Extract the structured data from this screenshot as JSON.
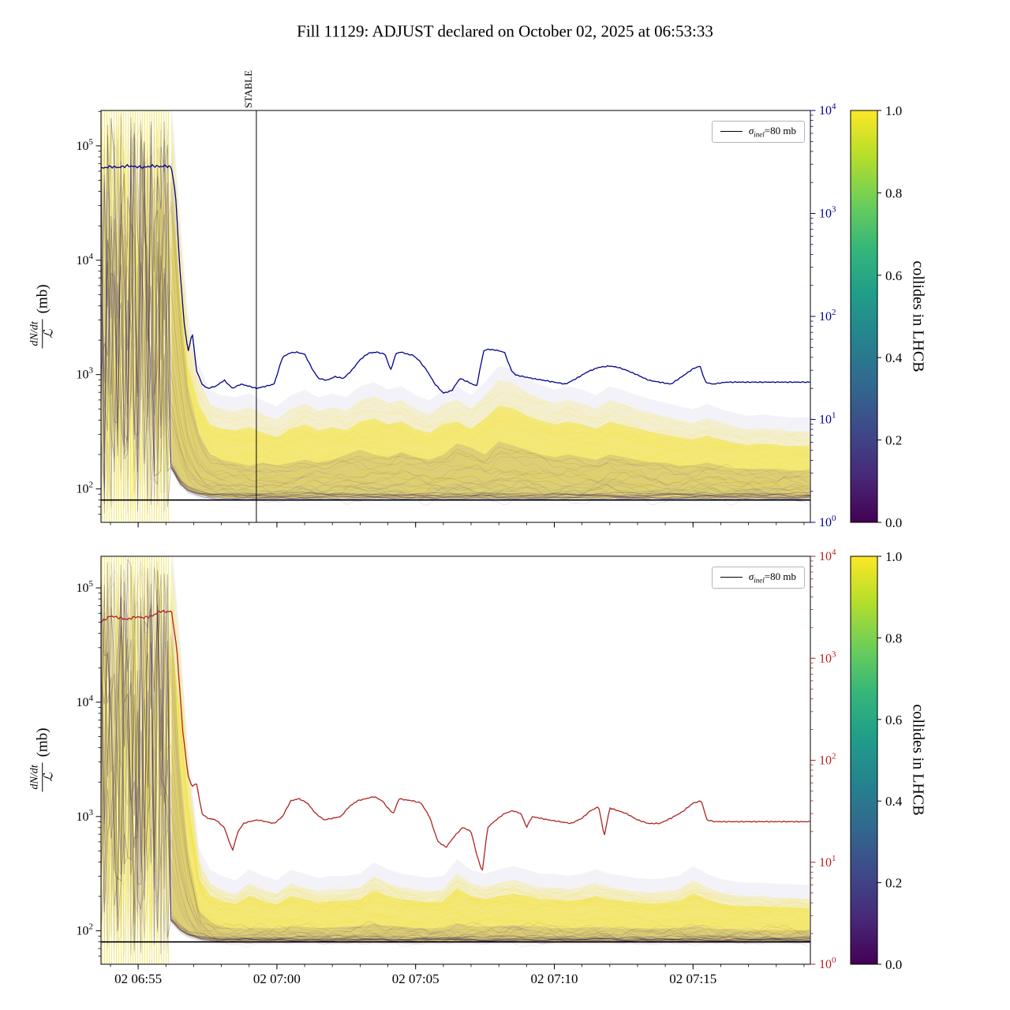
{
  "chart_data": {
    "type": "line",
    "title": "Fill 11129: ADJUST declared on October 02, 2025 at 06:53:33",
    "ylabel": {
      "numerator": "dN/dt",
      "denominator": "ℒ",
      "unit": "(mb)"
    },
    "xlabel": "",
    "x_domain_minutes": [
      53.66,
      79.23
    ],
    "x_ticks": {
      "t": [
        55,
        60,
        65,
        70,
        75
      ],
      "labels": [
        "02 06:55",
        "02 07:00",
        "02 07:05",
        "02 07:10",
        "02 07:15"
      ]
    },
    "annotations": {
      "stable": "STABLE",
      "stable_t": 59.26
    },
    "legend": {
      "sigma": "σ",
      "sub": "inel",
      "rest": "=80 mb",
      "label": "σ_inel=80 mb"
    },
    "colorbar": {
      "label": "collides in LHCB",
      "tick_labels": [
        "1.0",
        "0.8",
        "0.6",
        "0.4",
        "0.2",
        "0.0"
      ],
      "tick_values": [
        1.0,
        0.8,
        0.6,
        0.4,
        0.2,
        0.0
      ],
      "range": [
        0,
        1
      ],
      "colormap": "viridis",
      "colors_top_to_bottom": [
        "#fde725",
        "#b5de2b",
        "#6ece58",
        "#35b779",
        "#1f9e89",
        "#26828e",
        "#31688e",
        "#3e4989",
        "#482878",
        "#440154"
      ]
    },
    "panels": [
      {
        "name": "top",
        "line_color": "#00008b",
        "sigma_mb": 80,
        "prefill_end_t": 56.15,
        "y_left": {
          "scale": "log",
          "lim": [
            51,
            204000
          ],
          "base": "10",
          "tick_exponents": [
            2,
            3,
            4,
            5
          ]
        },
        "y_right": {
          "scale": "log",
          "lim": [
            1,
            10000
          ],
          "base": "10",
          "tick_exponents": [
            0,
            1,
            2,
            3,
            4
          ]
        },
        "line": {
          "t": [
            53.7,
            54.0,
            54.3,
            54.6,
            54.9,
            55.2,
            55.5,
            55.8,
            56.0,
            56.2,
            56.35,
            56.5,
            56.65,
            56.8,
            56.95,
            57.1,
            57.3,
            57.5,
            57.8,
            58.1,
            58.4,
            58.7,
            59.0,
            59.26,
            59.6,
            59.9,
            60.2,
            60.45,
            60.7,
            61.0,
            61.3,
            61.5,
            61.8,
            62.1,
            62.4,
            62.7,
            63.0,
            63.3,
            63.6,
            63.9,
            64.1,
            64.3,
            64.5,
            64.7,
            64.9,
            65.1,
            65.4,
            65.7,
            66.0,
            66.3,
            66.6,
            66.9,
            67.2,
            67.45,
            67.6,
            67.9,
            68.2,
            68.45,
            68.6,
            68.9,
            69.2,
            69.6,
            70.0,
            70.4,
            70.8,
            71.2,
            71.6,
            72.0,
            72.3,
            72.6,
            73.0,
            73.4,
            73.8,
            74.2,
            74.6,
            75.0,
            75.25,
            75.45,
            75.7,
            76.2,
            76.8,
            77.4,
            78.0,
            78.6,
            79.2
          ],
          "v": [
            2750,
            2850,
            2800,
            2900,
            2850,
            2800,
            2900,
            2850,
            2900,
            2800,
            1500,
            300,
            90,
            45,
            70,
            30,
            22,
            20,
            21,
            24,
            20,
            22,
            21,
            20,
            21,
            22,
            40,
            44,
            45,
            43,
            30,
            25,
            24,
            26,
            25,
            30,
            38,
            44,
            45,
            43,
            30,
            44,
            45,
            43,
            42,
            38,
            30,
            22,
            18,
            19,
            25,
            23,
            21,
            46,
            48,
            47,
            45,
            30,
            27,
            26,
            25,
            24,
            23,
            22,
            25,
            29,
            32,
            33,
            32,
            30,
            27,
            24,
            23,
            22,
            26,
            31,
            33,
            23,
            22,
            23,
            23,
            23,
            23,
            23,
            23
          ]
        },
        "band": {
          "t": [
            56.2,
            56.5,
            56.8,
            57.2,
            57.6,
            58.0,
            58.5,
            59.0,
            59.5,
            60.0,
            60.5,
            61.0,
            61.5,
            62.0,
            62.5,
            63.0,
            63.5,
            64.0,
            64.5,
            65.0,
            65.5,
            66.0,
            66.5,
            67.0,
            67.5,
            68.0,
            68.5,
            69.0,
            69.5,
            70.0,
            70.5,
            71.0,
            71.5,
            72.0,
            72.5,
            73.0,
            73.5,
            74.0,
            74.5,
            75.0,
            75.5,
            76.0,
            76.5,
            77.0,
            77.5,
            78.0,
            78.5,
            79.2
          ],
          "hi": [
            200000,
            20000,
            2500,
            900,
            550,
            500,
            480,
            520,
            450,
            400,
            500,
            560,
            480,
            520,
            480,
            600,
            650,
            560,
            600,
            500,
            450,
            560,
            600,
            500,
            650,
            900,
            850,
            700,
            620,
            560,
            600,
            560,
            500,
            600,
            550,
            500,
            460,
            430,
            400,
            380,
            420,
            380,
            350,
            330,
            340,
            330,
            320,
            320
          ],
          "lo": [
            150,
            110,
            95,
            88,
            84,
            83,
            82,
            82,
            82,
            82,
            82,
            82,
            82,
            82,
            82,
            82,
            82,
            82,
            82,
            82,
            82,
            82,
            82,
            82,
            82,
            82,
            82,
            82,
            82,
            82,
            82,
            82,
            82,
            82,
            82,
            82,
            82,
            82,
            82,
            82,
            82,
            82,
            82,
            82,
            82,
            82,
            82,
            82
          ],
          "purple_hi": [
            100000,
            5000,
            800,
            300,
            200,
            180,
            170,
            160,
            170,
            160,
            170,
            180,
            170,
            180,
            200,
            220,
            200,
            190,
            210,
            190,
            180,
            200,
            250,
            230,
            200,
            260,
            240,
            220,
            200,
            190,
            200,
            190,
            180,
            200,
            190,
            180,
            170,
            170,
            160,
            160,
            170,
            160,
            150,
            150,
            150,
            150,
            145,
            145
          ]
        }
      },
      {
        "name": "bottom",
        "line_color": "#b22222",
        "sigma_mb": 80,
        "prefill_end_t": 56.15,
        "y_left": {
          "scale": "log",
          "lim": [
            51,
            189000
          ],
          "base": "10",
          "tick_exponents": [
            2,
            3,
            4,
            5
          ]
        },
        "y_right": {
          "scale": "log",
          "lim": [
            1,
            10000
          ],
          "base": "10",
          "tick_exponents": [
            0,
            1,
            2,
            3,
            4
          ]
        },
        "line": {
          "t": [
            53.7,
            54.0,
            54.3,
            54.6,
            54.9,
            55.2,
            55.5,
            55.8,
            56.0,
            56.2,
            56.4,
            56.6,
            56.8,
            56.95,
            57.1,
            57.3,
            57.5,
            57.8,
            58.1,
            58.4,
            58.6,
            58.8,
            59.0,
            59.3,
            59.6,
            59.9,
            60.2,
            60.5,
            60.8,
            61.1,
            61.4,
            61.7,
            62.0,
            62.3,
            62.6,
            62.9,
            63.2,
            63.5,
            63.8,
            64.0,
            64.2,
            64.4,
            64.6,
            64.9,
            65.2,
            65.5,
            65.8,
            66.1,
            66.4,
            66.7,
            67.0,
            67.2,
            67.4,
            67.6,
            67.9,
            68.2,
            68.5,
            68.8,
            69.0,
            69.2,
            69.5,
            69.8,
            70.2,
            70.6,
            71.0,
            71.3,
            71.6,
            71.8,
            72.0,
            72.3,
            72.6,
            73.0,
            73.4,
            73.8,
            74.2,
            74.6,
            75.0,
            75.3,
            75.5,
            75.8,
            76.2,
            76.8,
            77.4,
            78.0,
            78.6,
            79.2
          ],
          "v": [
            2300,
            2600,
            2500,
            2400,
            2550,
            2500,
            2600,
            2900,
            2850,
            2900,
            1200,
            200,
            70,
            55,
            60,
            30,
            27,
            26,
            22,
            13,
            20,
            24,
            25,
            26,
            25,
            24,
            28,
            40,
            42,
            38,
            30,
            26,
            27,
            28,
            35,
            40,
            42,
            44,
            40,
            34,
            30,
            42,
            41,
            40,
            38,
            28,
            16,
            14,
            18,
            22,
            20,
            12,
            8,
            22,
            26,
            30,
            32,
            30,
            22,
            28,
            27,
            26,
            25,
            24,
            27,
            32,
            35,
            18,
            34,
            32,
            30,
            26,
            24,
            24,
            27,
            31,
            38,
            40,
            26,
            25,
            25,
            25,
            25,
            25,
            25,
            25
          ]
        },
        "band": {
          "t": [
            56.2,
            56.5,
            56.8,
            57.2,
            57.6,
            58.0,
            58.5,
            59.0,
            59.5,
            60.0,
            60.5,
            61.0,
            61.5,
            62.0,
            62.5,
            63.0,
            63.5,
            64.0,
            64.5,
            65.0,
            65.5,
            66.0,
            66.5,
            67.0,
            67.5,
            68.0,
            68.5,
            69.0,
            69.5,
            70.0,
            70.5,
            71.0,
            71.5,
            72.0,
            72.5,
            73.0,
            73.5,
            74.0,
            74.5,
            75.0,
            75.5,
            76.0,
            76.5,
            77.0,
            77.5,
            78.0,
            78.5,
            79.2
          ],
          "hi": [
            200000,
            30000,
            3000,
            400,
            260,
            230,
            210,
            260,
            230,
            210,
            260,
            240,
            220,
            230,
            230,
            240,
            300,
            260,
            240,
            230,
            220,
            230,
            320,
            260,
            240,
            260,
            280,
            260,
            240,
            240,
            230,
            240,
            260,
            240,
            230,
            220,
            215,
            220,
            230,
            280,
            240,
            215,
            205,
            200,
            200,
            195,
            195,
            190
          ],
          "lo": [
            120,
            100,
            90,
            84,
            81,
            80,
            80,
            80,
            80,
            80,
            80,
            80,
            80,
            80,
            80,
            80,
            80,
            80,
            80,
            80,
            80,
            80,
            80,
            80,
            80,
            80,
            80,
            80,
            80,
            80,
            80,
            80,
            80,
            80,
            80,
            80,
            80,
            80,
            80,
            80,
            80,
            80,
            80,
            80,
            80,
            80,
            80,
            80
          ],
          "purple_hi": [
            80000,
            3000,
            500,
            150,
            120,
            110,
            105,
            105,
            105,
            105,
            110,
            108,
            106,
            106,
            108,
            110,
            115,
            110,
            108,
            106,
            105,
            106,
            115,
            110,
            108,
            110,
            112,
            110,
            108,
            106,
            105,
            106,
            108,
            106,
            105,
            105,
            104,
            105,
            106,
            110,
            106,
            104,
            103,
            102,
            102,
            102,
            101,
            101
          ]
        }
      }
    ]
  }
}
